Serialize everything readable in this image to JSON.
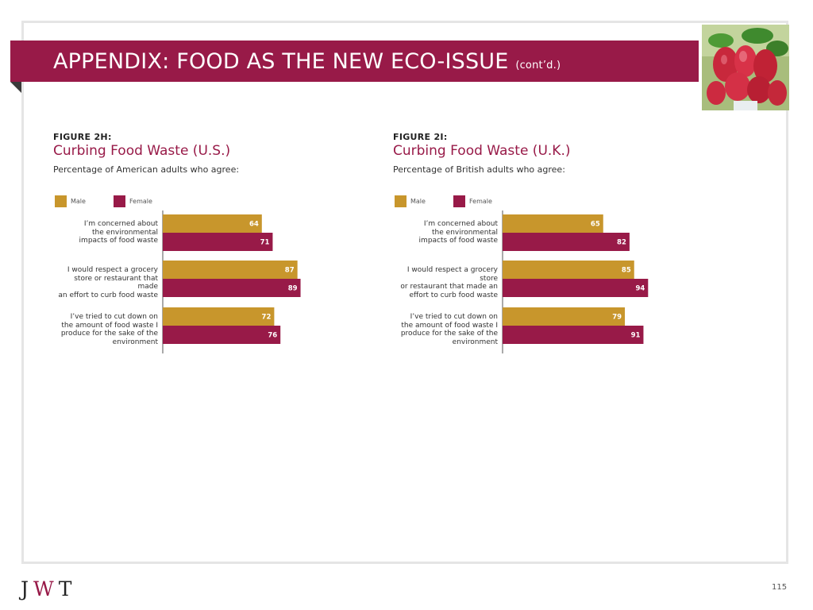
{
  "header": {
    "title": "APPENDIX: FOOD AS THE NEW ECO-ISSUE",
    "title_suffix": "(cont’d.)"
  },
  "colors": {
    "male": "#c8962c",
    "female": "#981a48",
    "accent": "#981a48"
  },
  "chart_data": [
    {
      "type": "bar",
      "orientation": "horizontal",
      "figure_label": "FIGURE 2H:",
      "title": "Curbing Food Waste (U.S.)",
      "subtitle": "Percentage of American adults who agree:",
      "legend_position": "top-left",
      "xlim": [
        0,
        100
      ],
      "grid": false,
      "categories": [
        "I’m concerned about the environmental impacts of food waste",
        "I would respect a grocery store or restaurant that made an effort to curb food waste",
        "I’ve tried to cut down on the amount of food waste I produce for the sake of the environment"
      ],
      "category_lines": [
        [
          "I’m concerned about",
          "the environmental",
          "impacts of food waste"
        ],
        [
          "I would respect a grocery",
          "store or restaurant that made",
          "an effort to curb food waste"
        ],
        [
          "I’ve tried to cut down on",
          "the amount of food waste I",
          "produce for the sake of the",
          "environment"
        ]
      ],
      "series": [
        {
          "name": "Male",
          "values": [
            64,
            87,
            72
          ]
        },
        {
          "name": "Female",
          "values": [
            71,
            89,
            76
          ]
        }
      ]
    },
    {
      "type": "bar",
      "orientation": "horizontal",
      "figure_label": "FIGURE 2I:",
      "title": "Curbing Food Waste (U.K.)",
      "subtitle": "Percentage of British adults who agree:",
      "legend_position": "top-left",
      "xlim": [
        0,
        100
      ],
      "grid": false,
      "categories": [
        "I’m concerned about the environmental impacts of food waste",
        "I would respect a grocery store or restaurant that made an effort to curb food waste",
        "I’ve tried to cut down on the amount of food waste I produce for the sake of the environment"
      ],
      "category_lines": [
        [
          "I’m concerned about",
          "the environmental",
          "impacts of food waste"
        ],
        [
          "I would respect a grocery store",
          "or restaurant that made an",
          "effort to curb food waste"
        ],
        [
          "I’ve tried to cut down on",
          "the amount of food waste I",
          "produce for the sake of the",
          "environment"
        ]
      ],
      "series": [
        {
          "name": "Male",
          "values": [
            65,
            85,
            79
          ]
        },
        {
          "name": "Female",
          "values": [
            82,
            94,
            91
          ]
        }
      ]
    }
  ],
  "footer": {
    "logo_left": "J",
    "logo_mid": "W",
    "logo_right": "T",
    "page_number": "115"
  }
}
